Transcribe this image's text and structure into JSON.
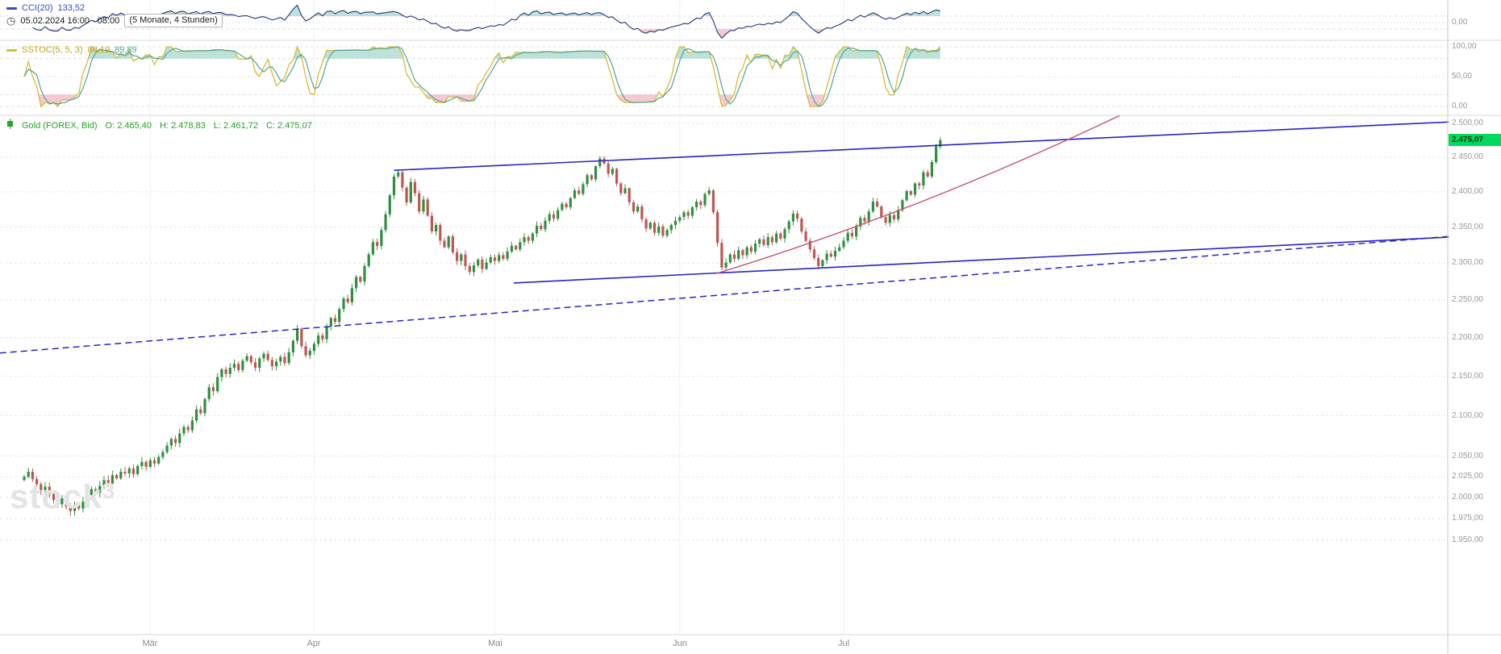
{
  "cci_panel": {
    "name": "CCI(20)",
    "value": "133,52",
    "timestamp": "05.02.2024 16:00 - 08:00",
    "timeframe": "(5 Monate, 4 Stunden)",
    "axis_labels": [
      {
        "value": 0,
        "label": "0,00"
      }
    ],
    "thresholds": [
      100,
      -100
    ]
  },
  "sstoc_panel": {
    "name": "SSTOC(5, 5, 3)",
    "value_k": "88,19",
    "value_d": "89,89",
    "axis_labels": [
      {
        "value": 100,
        "label": "100,00"
      },
      {
        "value": 50,
        "label": "50,00"
      },
      {
        "value": 0,
        "label": "0,00"
      }
    ],
    "thresholds": [
      80,
      20
    ]
  },
  "main_panel": {
    "legend": {
      "instrument": "Gold (FOREX, Bid)",
      "open": "O: 2.465,40",
      "high": "H: 2.478,83",
      "low": "L: 2.461,72",
      "close": "C: 2.475,07"
    },
    "price_badge": "2.475,07",
    "watermark": {
      "base": "stock",
      "sup": "3"
    }
  },
  "icons": {
    "clock": "◷"
  },
  "x_axis": {
    "months": [
      {
        "label": "Mär",
        "index": 30
      },
      {
        "label": "Apr",
        "index": 69
      },
      {
        "label": "Mai",
        "index": 112
      },
      {
        "label": "Jun",
        "index": 156
      },
      {
        "label": "Jul",
        "index": 195
      }
    ]
  },
  "chart_data": {
    "type": "candlestick",
    "instrument": "Gold (FOREX, Bid)",
    "range": "5 Monate",
    "interval": "4 Stunden",
    "last_ohlc": {
      "o": 2465.4,
      "h": 2478.83,
      "l": 2461.72,
      "c": 2475.07
    },
    "y_ticks": [
      {
        "value": 2500,
        "label": "2.500,00"
      },
      {
        "value": 2450,
        "label": "2.450,00"
      },
      {
        "value": 2400,
        "label": "2.400,00"
      },
      {
        "value": 2350,
        "label": "2.350,00"
      },
      {
        "value": 2300,
        "label": "2.300,00"
      },
      {
        "value": 2250,
        "label": "2.250,00"
      },
      {
        "value": 2200,
        "label": "2.200,00"
      },
      {
        "value": 2150,
        "label": "2.150,00"
      },
      {
        "value": 2100,
        "label": "2.100,00"
      },
      {
        "value": 2050,
        "label": "2.050,00"
      },
      {
        "value": 2025,
        "label": "2.025,00"
      },
      {
        "value": 2000,
        "label": "2.000,00"
      },
      {
        "value": 1975,
        "label": "1.975,00"
      },
      {
        "value": 1950,
        "label": "1.950,00"
      }
    ],
    "closes": [
      2025,
      2031,
      2022,
      2016,
      2009,
      2013,
      2004,
      1997,
      1992,
      1999,
      1989,
      1984,
      1991,
      1987,
      1995,
      2003,
      2010,
      2006,
      2014,
      2021,
      2017,
      2027,
      2023,
      2031,
      2029,
      2035,
      2028,
      2038,
      2043,
      2037,
      2045,
      2041,
      2049,
      2055,
      2063,
      2071,
      2066,
      2078,
      2086,
      2082,
      2094,
      2108,
      2103,
      2121,
      2136,
      2131,
      2149,
      2159,
      2153,
      2161,
      2166,
      2158,
      2170,
      2176,
      2168,
      2161,
      2173,
      2179,
      2171,
      2163,
      2169,
      2175,
      2167,
      2181,
      2196,
      2212,
      2189,
      2177,
      2183,
      2192,
      2203,
      2198,
      2215,
      2226,
      2221,
      2238,
      2252,
      2247,
      2266,
      2281,
      2275,
      2296,
      2312,
      2329,
      2324,
      2346,
      2368,
      2395,
      2422,
      2428,
      2406,
      2385,
      2414,
      2398,
      2372,
      2389,
      2366,
      2344,
      2353,
      2331,
      2322,
      2337,
      2315,
      2303,
      2312,
      2296,
      2288,
      2297,
      2305,
      2292,
      2301,
      2308,
      2303,
      2311,
      2306,
      2316,
      2324,
      2319,
      2329,
      2336,
      2331,
      2341,
      2352,
      2347,
      2359,
      2368,
      2362,
      2374,
      2383,
      2378,
      2391,
      2402,
      2397,
      2411,
      2424,
      2418,
      2437,
      2448,
      2441,
      2426,
      2433,
      2412,
      2398,
      2405,
      2385,
      2372,
      2379,
      2361,
      2348,
      2356,
      2342,
      2351,
      2338,
      2346,
      2353,
      2359,
      2364,
      2371,
      2366,
      2378,
      2386,
      2381,
      2397,
      2402,
      2371,
      2328,
      2294,
      2301,
      2312,
      2306,
      2318,
      2311,
      2322,
      2316,
      2327,
      2333,
      2325,
      2336,
      2329,
      2341,
      2334,
      2347,
      2358,
      2369,
      2362,
      2344,
      2331,
      2319,
      2307,
      2296,
      2304,
      2313,
      2309,
      2317,
      2322,
      2331,
      2342,
      2337,
      2351,
      2363,
      2358,
      2372,
      2386,
      2379,
      2364,
      2356,
      2367,
      2361,
      2374,
      2388,
      2401,
      2396,
      2412,
      2409,
      2428,
      2422,
      2443,
      2466,
      2475.07
    ],
    "indicators": [
      {
        "type": "CCI",
        "period": 20,
        "last": 133.52
      },
      {
        "type": "SSTOC",
        "params": [
          5,
          5,
          3
        ],
        "last": [
          88.19,
          89.89
        ]
      }
    ],
    "trendlines": [
      {
        "name": "upper-channel-line",
        "i1": 88,
        "p1": 2431,
        "i2": 339,
        "p2": 2502,
        "dash": null,
        "color": "#2424cc",
        "width": 1.6,
        "curve": false
      },
      {
        "name": "lower-channel-line",
        "i1": 116.5,
        "p1": 2273,
        "i2": 339,
        "p2": 2336,
        "dash": null,
        "color": "#2424cc",
        "width": 1.6,
        "curve": false
      },
      {
        "name": "long-term-dashed-line",
        "i1": -5.8,
        "p1": 2180,
        "i2": 339,
        "p2": 2337,
        "dash": "8,5",
        "color": "#2424cc",
        "width": 1.5,
        "curve": false
      },
      {
        "name": "rising-red-trendline",
        "i1": 164.8,
        "p1": 2286,
        "i2": 260.8,
        "p2": 2512,
        "dash": null,
        "color": "#c9516b",
        "width": 1.4,
        "curve": true
      }
    ],
    "colors": {
      "up": "#2f8f3f",
      "down": "#bf5652",
      "cci": "#25357f",
      "sstoc_k": "#d9bb31",
      "sstoc_d": "#4ba79b",
      "trend_blue": "#2424cc",
      "trend_red": "#c9516b",
      "badge": "#00d85e",
      "shade_over": "#aed9cf",
      "shade_under": "#f3bfca"
    }
  }
}
